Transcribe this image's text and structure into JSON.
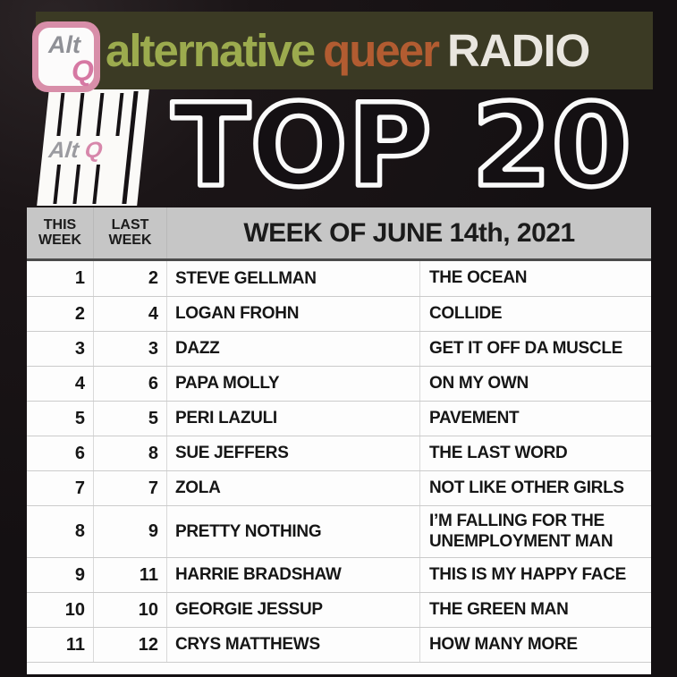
{
  "banner": {
    "background": "#3b3a24",
    "words": {
      "alternative": {
        "text": "alternative",
        "color": "#9cab4e"
      },
      "queer": {
        "text": "queer",
        "color": "#b25c31"
      },
      "radio": {
        "text": "RADIO",
        "color": "#e9e6df"
      }
    },
    "badge": {
      "line1": "Alt",
      "line2": "Q",
      "frame_color": "#d88ea9",
      "q_color": "#d678a3"
    }
  },
  "piano_logo": {
    "alt": "Alt",
    "q": "Q"
  },
  "headline": {
    "text": "TOP 20",
    "outline_color": "#fafafa"
  },
  "table": {
    "header": {
      "this_week": "THIS\nWEEK",
      "last_week": "LAST\nWEEK",
      "week_title": "WEEK OF JUNE 14th, 2021",
      "background": "#c6c6c6"
    },
    "rows": [
      {
        "this_week": "1",
        "last_week": "2",
        "artist": "STEVE GELLMAN",
        "title": "THE OCEAN"
      },
      {
        "this_week": "2",
        "last_week": "4",
        "artist": "LOGAN FROHN",
        "title": "COLLIDE"
      },
      {
        "this_week": "3",
        "last_week": "3",
        "artist": "DAZZ",
        "title": "GET IT OFF DA MUSCLE"
      },
      {
        "this_week": "4",
        "last_week": "6",
        "artist": "PAPA MOLLY",
        "title": "ON MY OWN"
      },
      {
        "this_week": "5",
        "last_week": "5",
        "artist": "PERI LAZULI",
        "title": "PAVEMENT"
      },
      {
        "this_week": "6",
        "last_week": "8",
        "artist": "SUE JEFFERS",
        "title": "THE LAST WORD"
      },
      {
        "this_week": "7",
        "last_week": "7",
        "artist": "ZOLA",
        "title": "NOT LIKE OTHER GIRLS"
      },
      {
        "this_week": "8",
        "last_week": "9",
        "artist": "PRETTY NOTHING",
        "title": "I’M FALLING FOR THE\nUNEMPLOYMENT MAN",
        "tall": true
      },
      {
        "this_week": "9",
        "last_week": "11",
        "artist": "HARRIE BRADSHAW",
        "title": "THIS IS MY HAPPY FACE"
      },
      {
        "this_week": "10",
        "last_week": "10",
        "artist": "GEORGIE JESSUP",
        "title": "THE GREEN MAN"
      },
      {
        "this_week": "11",
        "last_week": "12",
        "artist": "CRYS MATTHEWS",
        "title": "HOW MANY MORE"
      }
    ]
  }
}
